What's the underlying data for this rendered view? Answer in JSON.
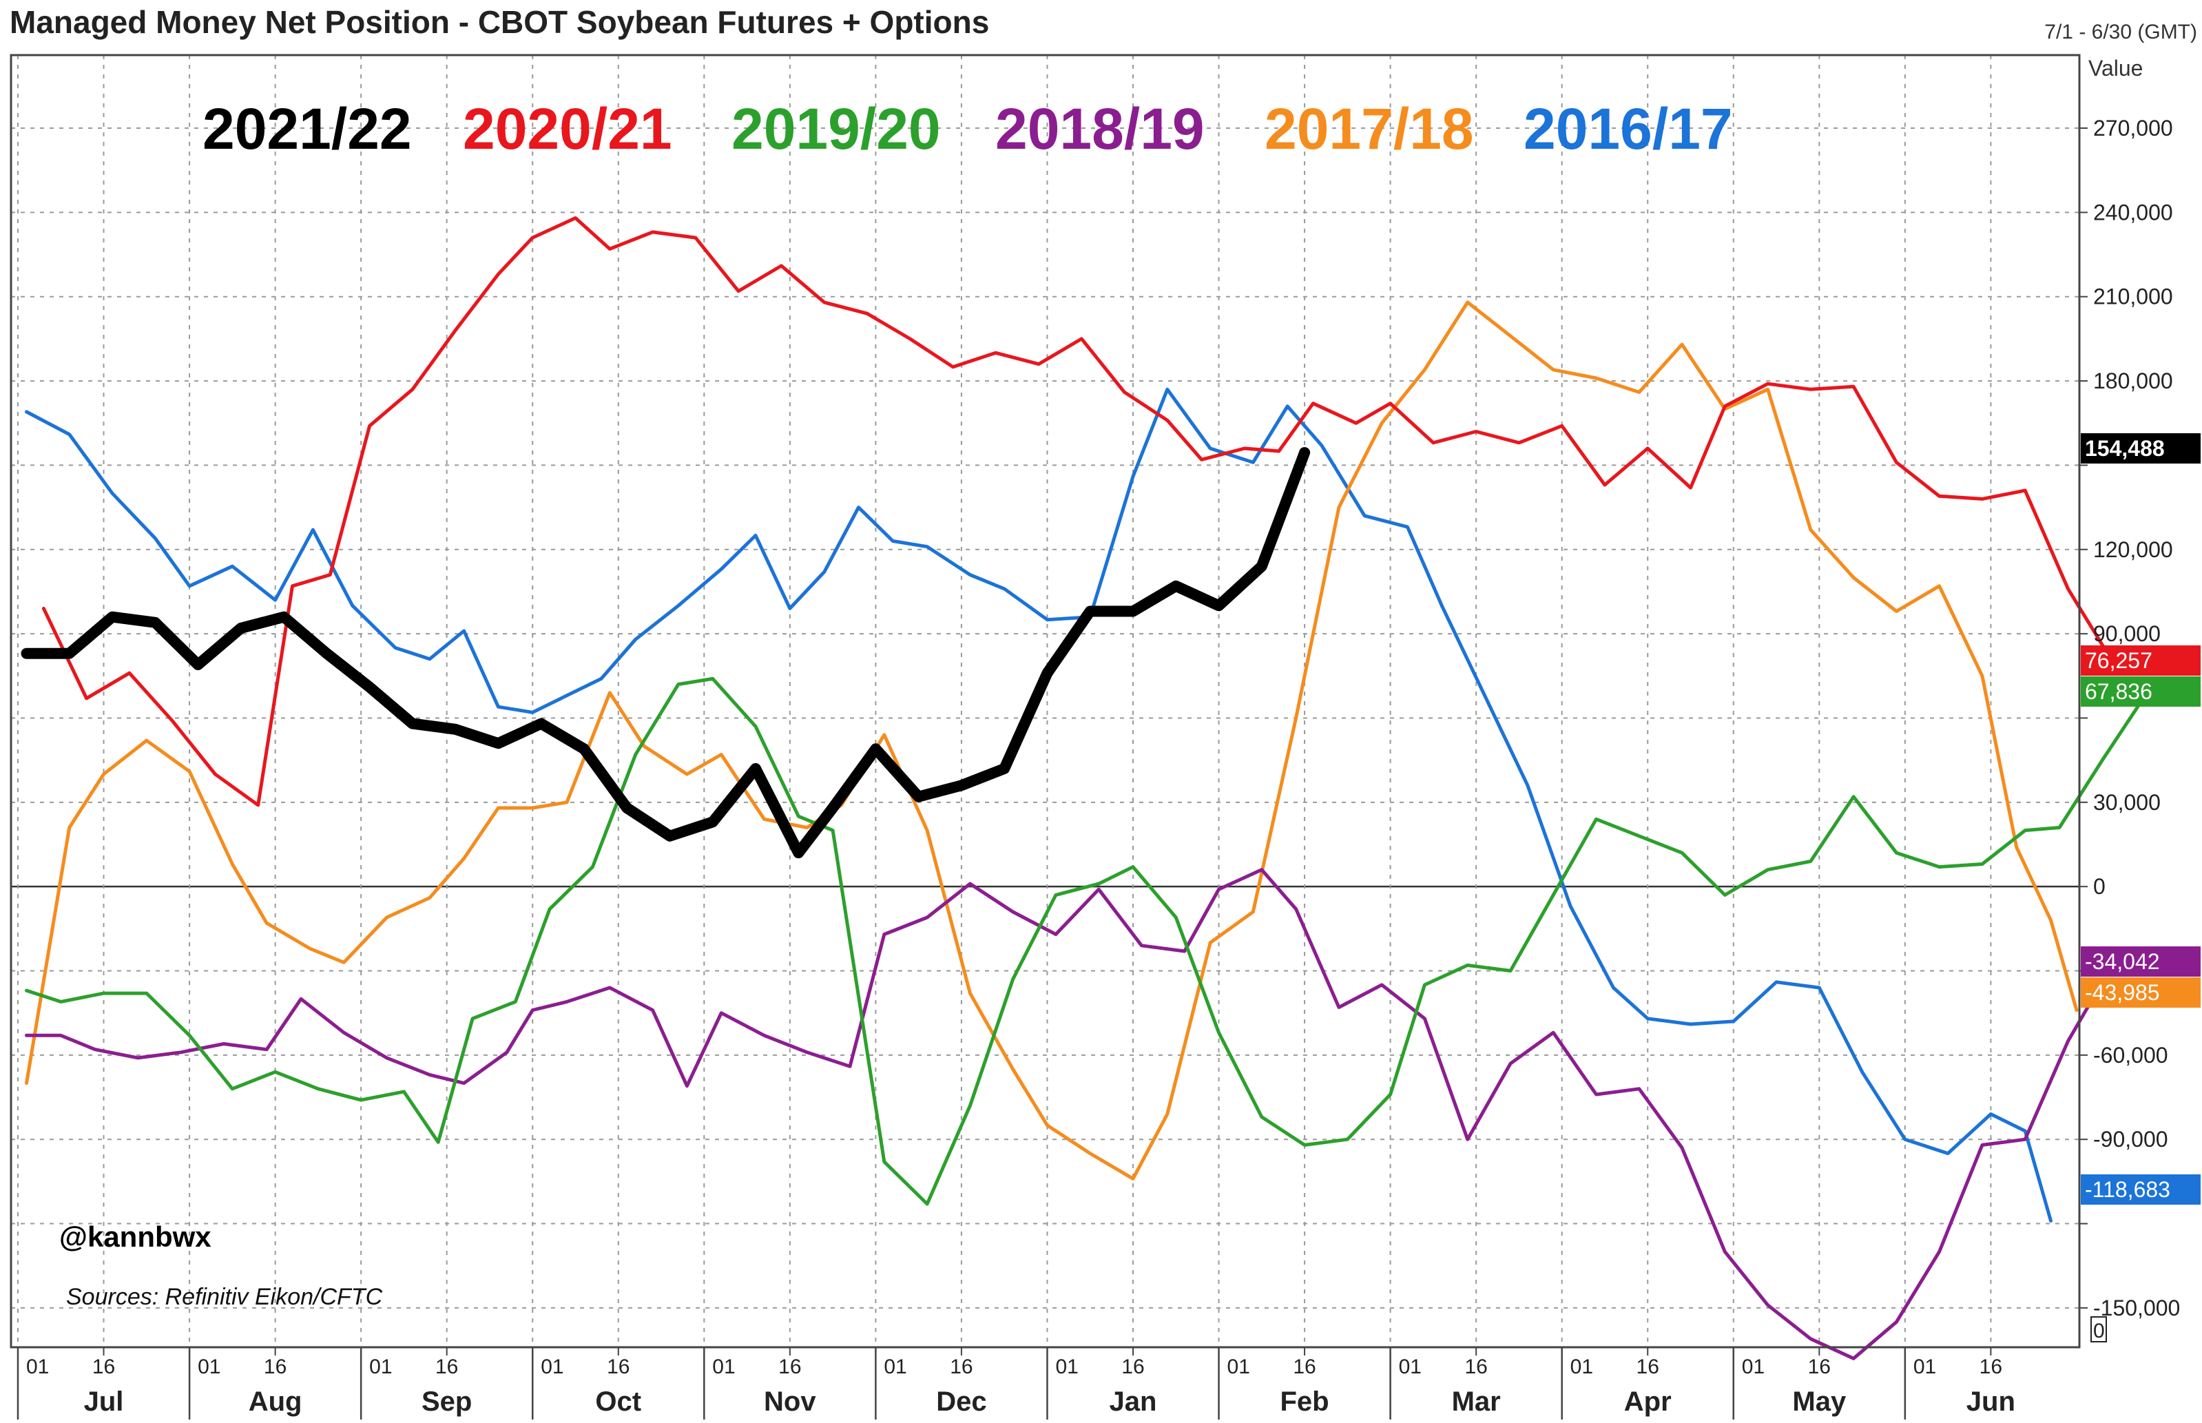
{
  "chart_data": {
    "type": "line",
    "title": "Managed Money Net Position - CBOT Soybean Futures + Options",
    "date_range_label": "7/1 - 6/30 (GMT)",
    "y_axis_title": "Value",
    "x_axis_unit": "months_from_jul_1",
    "xlim": [
      0,
      11.9
    ],
    "ylim": [
      -164000,
      296000
    ],
    "y_ticks": [
      270000,
      240000,
      210000,
      180000,
      120000,
      90000,
      30000,
      0,
      -60000,
      -90000,
      -150000
    ],
    "y_tick_labels": [
      "270,000",
      "240,000",
      "210,000",
      "180,000",
      "120,000",
      "90,000",
      "30,000",
      "0",
      "-60,000",
      "-90,000",
      "-150,000"
    ],
    "y_tick_labels_hidden": [
      "150,000",
      "60,000",
      "-30,000"
    ],
    "bottom_marker_label": "0",
    "x_axis": {
      "months": [
        "Jul",
        "Aug",
        "Sep",
        "Oct",
        "Nov",
        "Dec",
        "Jan",
        "Feb",
        "Mar",
        "Apr",
        "May",
        "Jun"
      ],
      "day_labels": [
        "01",
        "16"
      ]
    },
    "grid": true,
    "legend": "top-left, colored text labels",
    "source": "Sources: Refinitiv Eikon/CFTC",
    "watermark": "@kannbwx",
    "series": [
      {
        "name": "2016/17",
        "color": "#1c73d8",
        "end_label": "-118,683",
        "points": [
          [
            0.05,
            169000
          ],
          [
            0.3,
            161000
          ],
          [
            0.55,
            140000
          ],
          [
            0.8,
            124000
          ],
          [
            1.0,
            107000
          ],
          [
            1.25,
            114000
          ],
          [
            1.5,
            102000
          ],
          [
            1.72,
            127000
          ],
          [
            1.95,
            100000
          ],
          [
            2.2,
            85000
          ],
          [
            2.4,
            81000
          ],
          [
            2.6,
            91000
          ],
          [
            2.8,
            64000
          ],
          [
            3.0,
            62000
          ],
          [
            3.2,
            68000
          ],
          [
            3.4,
            74000
          ],
          [
            3.6,
            88000
          ],
          [
            3.85,
            100000
          ],
          [
            4.1,
            113000
          ],
          [
            4.3,
            125000
          ],
          [
            4.5,
            99000
          ],
          [
            4.7,
            112000
          ],
          [
            4.9,
            135000
          ],
          [
            5.1,
            123000
          ],
          [
            5.3,
            121000
          ],
          [
            5.55,
            111000
          ],
          [
            5.75,
            106000
          ],
          [
            6.0,
            95000
          ],
          [
            6.25,
            96000
          ],
          [
            6.5,
            146000
          ],
          [
            6.7,
            177000
          ],
          [
            6.95,
            156000
          ],
          [
            7.2,
            151000
          ],
          [
            7.4,
            171000
          ],
          [
            7.6,
            157000
          ],
          [
            7.85,
            132000
          ],
          [
            8.1,
            128000
          ],
          [
            8.3,
            100000
          ],
          [
            8.55,
            68000
          ],
          [
            8.8,
            36000
          ],
          [
            9.05,
            -7000
          ],
          [
            9.3,
            -36000
          ],
          [
            9.5,
            -47000
          ],
          [
            9.75,
            -49000
          ],
          [
            10.0,
            -48000
          ],
          [
            10.25,
            -34000
          ],
          [
            10.5,
            -36000
          ],
          [
            10.75,
            -66000
          ],
          [
            11.0,
            -90000
          ],
          [
            11.25,
            -95000
          ],
          [
            11.5,
            -81000
          ],
          [
            11.7,
            -87000
          ],
          [
            11.85,
            -119000
          ]
        ]
      },
      {
        "name": "2017/18",
        "color": "#f58c1e",
        "end_label": "-43,985",
        "points": [
          [
            0.05,
            -70000
          ],
          [
            0.3,
            21000
          ],
          [
            0.5,
            40000
          ],
          [
            0.75,
            52000
          ],
          [
            1.0,
            41000
          ],
          [
            1.25,
            8000
          ],
          [
            1.45,
            -13000
          ],
          [
            1.7,
            -22000
          ],
          [
            1.9,
            -27000
          ],
          [
            2.15,
            -11000
          ],
          [
            2.4,
            -4000
          ],
          [
            2.6,
            10000
          ],
          [
            2.8,
            28000
          ],
          [
            3.0,
            28000
          ],
          [
            3.2,
            30000
          ],
          [
            3.45,
            69000
          ],
          [
            3.65,
            50000
          ],
          [
            3.9,
            40000
          ],
          [
            4.1,
            47000
          ],
          [
            4.35,
            24000
          ],
          [
            4.6,
            21000
          ],
          [
            4.8,
            29000
          ],
          [
            5.05,
            54000
          ],
          [
            5.3,
            20000
          ],
          [
            5.55,
            -38000
          ],
          [
            5.8,
            -65000
          ],
          [
            6.0,
            -85000
          ],
          [
            6.25,
            -95000
          ],
          [
            6.5,
            -104000
          ],
          [
            6.7,
            -81000
          ],
          [
            6.95,
            -20000
          ],
          [
            7.2,
            -9000
          ],
          [
            7.45,
            60000
          ],
          [
            7.7,
            135000
          ],
          [
            7.95,
            165000
          ],
          [
            8.2,
            184000
          ],
          [
            8.45,
            208000
          ],
          [
            8.7,
            196000
          ],
          [
            8.95,
            184000
          ],
          [
            9.2,
            181000
          ],
          [
            9.45,
            176000
          ],
          [
            9.7,
            193000
          ],
          [
            9.95,
            170000
          ],
          [
            10.2,
            177000
          ],
          [
            10.45,
            127000
          ],
          [
            10.7,
            110000
          ],
          [
            10.95,
            98000
          ],
          [
            11.2,
            107000
          ],
          [
            11.45,
            75000
          ],
          [
            11.65,
            14000
          ],
          [
            11.85,
            -12000
          ],
          [
            12.0,
            -44000
          ]
        ]
      },
      {
        "name": "2018/19",
        "color": "#8b1e8f",
        "end_label": "-34,042",
        "points": [
          [
            0.05,
            -53000
          ],
          [
            0.25,
            -53000
          ],
          [
            0.45,
            -58000
          ],
          [
            0.7,
            -61000
          ],
          [
            0.95,
            -59000
          ],
          [
            1.2,
            -56000
          ],
          [
            1.45,
            -58000
          ],
          [
            1.65,
            -40000
          ],
          [
            1.9,
            -52000
          ],
          [
            2.15,
            -61000
          ],
          [
            2.4,
            -67000
          ],
          [
            2.6,
            -70000
          ],
          [
            2.85,
            -59000
          ],
          [
            3.0,
            -44000
          ],
          [
            3.2,
            -41000
          ],
          [
            3.45,
            -36000
          ],
          [
            3.7,
            -44000
          ],
          [
            3.9,
            -71000
          ],
          [
            4.1,
            -45000
          ],
          [
            4.35,
            -53000
          ],
          [
            4.6,
            -59000
          ],
          [
            4.85,
            -64000
          ],
          [
            5.05,
            -17000
          ],
          [
            5.3,
            -11000
          ],
          [
            5.55,
            1000
          ],
          [
            5.8,
            -9000
          ],
          [
            6.05,
            -17000
          ],
          [
            6.3,
            -1000
          ],
          [
            6.55,
            -21000
          ],
          [
            6.8,
            -23000
          ],
          [
            7.0,
            -1000
          ],
          [
            7.25,
            6000
          ],
          [
            7.45,
            -8000
          ],
          [
            7.7,
            -43000
          ],
          [
            7.95,
            -35000
          ],
          [
            8.2,
            -47000
          ],
          [
            8.45,
            -90000
          ],
          [
            8.7,
            -63000
          ],
          [
            8.95,
            -52000
          ],
          [
            9.2,
            -74000
          ],
          [
            9.45,
            -72000
          ],
          [
            9.7,
            -93000
          ],
          [
            9.95,
            -130000
          ],
          [
            10.2,
            -149000
          ],
          [
            10.45,
            -161000
          ],
          [
            10.7,
            -168000
          ],
          [
            10.95,
            -155000
          ],
          [
            11.2,
            -130000
          ],
          [
            11.45,
            -92000
          ],
          [
            11.7,
            -90000
          ],
          [
            11.95,
            -55000
          ],
          [
            12.15,
            -34000
          ]
        ]
      },
      {
        "name": "2019/20",
        "color": "#2ca02c",
        "end_label": "67,836",
        "points": [
          [
            0.05,
            -37000
          ],
          [
            0.25,
            -41000
          ],
          [
            0.5,
            -38000
          ],
          [
            0.75,
            -38000
          ],
          [
            1.0,
            -53000
          ],
          [
            1.25,
            -72000
          ],
          [
            1.5,
            -66000
          ],
          [
            1.75,
            -72000
          ],
          [
            2.0,
            -76000
          ],
          [
            2.25,
            -73000
          ],
          [
            2.45,
            -91000
          ],
          [
            2.65,
            -47000
          ],
          [
            2.9,
            -41000
          ],
          [
            3.1,
            -8000
          ],
          [
            3.35,
            7000
          ],
          [
            3.6,
            47000
          ],
          [
            3.85,
            72000
          ],
          [
            4.05,
            74000
          ],
          [
            4.3,
            57000
          ],
          [
            4.55,
            25000
          ],
          [
            4.75,
            20000
          ],
          [
            5.05,
            -98000
          ],
          [
            5.3,
            -113000
          ],
          [
            5.55,
            -78000
          ],
          [
            5.8,
            -33000
          ],
          [
            6.05,
            -3000
          ],
          [
            6.3,
            1000
          ],
          [
            6.5,
            7000
          ],
          [
            6.75,
            -11000
          ],
          [
            7.0,
            -52000
          ],
          [
            7.25,
            -82000
          ],
          [
            7.5,
            -92000
          ],
          [
            7.75,
            -90000
          ],
          [
            8.0,
            -74000
          ],
          [
            8.2,
            -35000
          ],
          [
            8.45,
            -28000
          ],
          [
            8.7,
            -30000
          ],
          [
            8.95,
            -3000
          ],
          [
            9.2,
            24000
          ],
          [
            9.45,
            18000
          ],
          [
            9.7,
            12000
          ],
          [
            9.95,
            -3000
          ],
          [
            10.2,
            6000
          ],
          [
            10.45,
            9000
          ],
          [
            10.7,
            32000
          ],
          [
            10.95,
            12000
          ],
          [
            11.2,
            7000
          ],
          [
            11.45,
            8000
          ],
          [
            11.7,
            20000
          ],
          [
            11.9,
            21000
          ],
          [
            12.15,
            45000
          ],
          [
            12.4,
            68000
          ]
        ]
      },
      {
        "name": "2020/21",
        "color": "#e8171d",
        "end_label": "76,257",
        "points": [
          [
            0.15,
            99000
          ],
          [
            0.4,
            67000
          ],
          [
            0.65,
            76000
          ],
          [
            0.9,
            59000
          ],
          [
            1.15,
            40000
          ],
          [
            1.4,
            29000
          ],
          [
            1.6,
            107000
          ],
          [
            1.82,
            111000
          ],
          [
            2.05,
            164000
          ],
          [
            2.3,
            177000
          ],
          [
            2.55,
            198000
          ],
          [
            2.8,
            218000
          ],
          [
            3.0,
            231000
          ],
          [
            3.25,
            238000
          ],
          [
            3.45,
            227000
          ],
          [
            3.7,
            233000
          ],
          [
            3.95,
            231000
          ],
          [
            4.2,
            212000
          ],
          [
            4.45,
            221000
          ],
          [
            4.7,
            208000
          ],
          [
            4.95,
            204000
          ],
          [
            5.2,
            195000
          ],
          [
            5.45,
            185000
          ],
          [
            5.7,
            190000
          ],
          [
            5.95,
            186000
          ],
          [
            6.2,
            195000
          ],
          [
            6.45,
            176000
          ],
          [
            6.7,
            166000
          ],
          [
            6.9,
            152000
          ],
          [
            7.15,
            156000
          ],
          [
            7.35,
            155000
          ],
          [
            7.55,
            172000
          ],
          [
            7.8,
            165000
          ],
          [
            8.0,
            172000
          ],
          [
            8.25,
            158000
          ],
          [
            8.5,
            162000
          ],
          [
            8.75,
            158000
          ],
          [
            9.0,
            164000
          ],
          [
            9.25,
            143000
          ],
          [
            9.5,
            156000
          ],
          [
            9.75,
            142000
          ],
          [
            9.95,
            171000
          ],
          [
            10.2,
            179000
          ],
          [
            10.45,
            177000
          ],
          [
            10.7,
            178000
          ],
          [
            10.95,
            151000
          ],
          [
            11.2,
            139000
          ],
          [
            11.45,
            138000
          ],
          [
            11.7,
            141000
          ],
          [
            11.95,
            106000
          ],
          [
            12.2,
            81000
          ],
          [
            12.4,
            76000
          ]
        ]
      },
      {
        "name": "2021/22",
        "color": "#000000",
        "end_label": "154,488",
        "width": 16,
        "points": [
          [
            0.05,
            83000
          ],
          [
            0.3,
            83000
          ],
          [
            0.55,
            96000
          ],
          [
            0.8,
            94000
          ],
          [
            1.05,
            79000
          ],
          [
            1.3,
            92000
          ],
          [
            1.55,
            96000
          ],
          [
            1.8,
            83000
          ],
          [
            2.05,
            71000
          ],
          [
            2.3,
            58000
          ],
          [
            2.55,
            56000
          ],
          [
            2.8,
            51000
          ],
          [
            3.05,
            58000
          ],
          [
            3.3,
            49000
          ],
          [
            3.55,
            28000
          ],
          [
            3.8,
            18000
          ],
          [
            4.05,
            23000
          ],
          [
            4.3,
            42000
          ],
          [
            4.55,
            12000
          ],
          [
            4.75,
            28000
          ],
          [
            5.0,
            49000
          ],
          [
            5.25,
            32000
          ],
          [
            5.5,
            36000
          ],
          [
            5.75,
            42000
          ],
          [
            6.0,
            76000
          ],
          [
            6.25,
            98000
          ],
          [
            6.5,
            98000
          ],
          [
            6.75,
            107000
          ],
          [
            7.0,
            100000
          ],
          [
            7.25,
            114000
          ],
          [
            7.5,
            154500
          ]
        ]
      }
    ]
  }
}
